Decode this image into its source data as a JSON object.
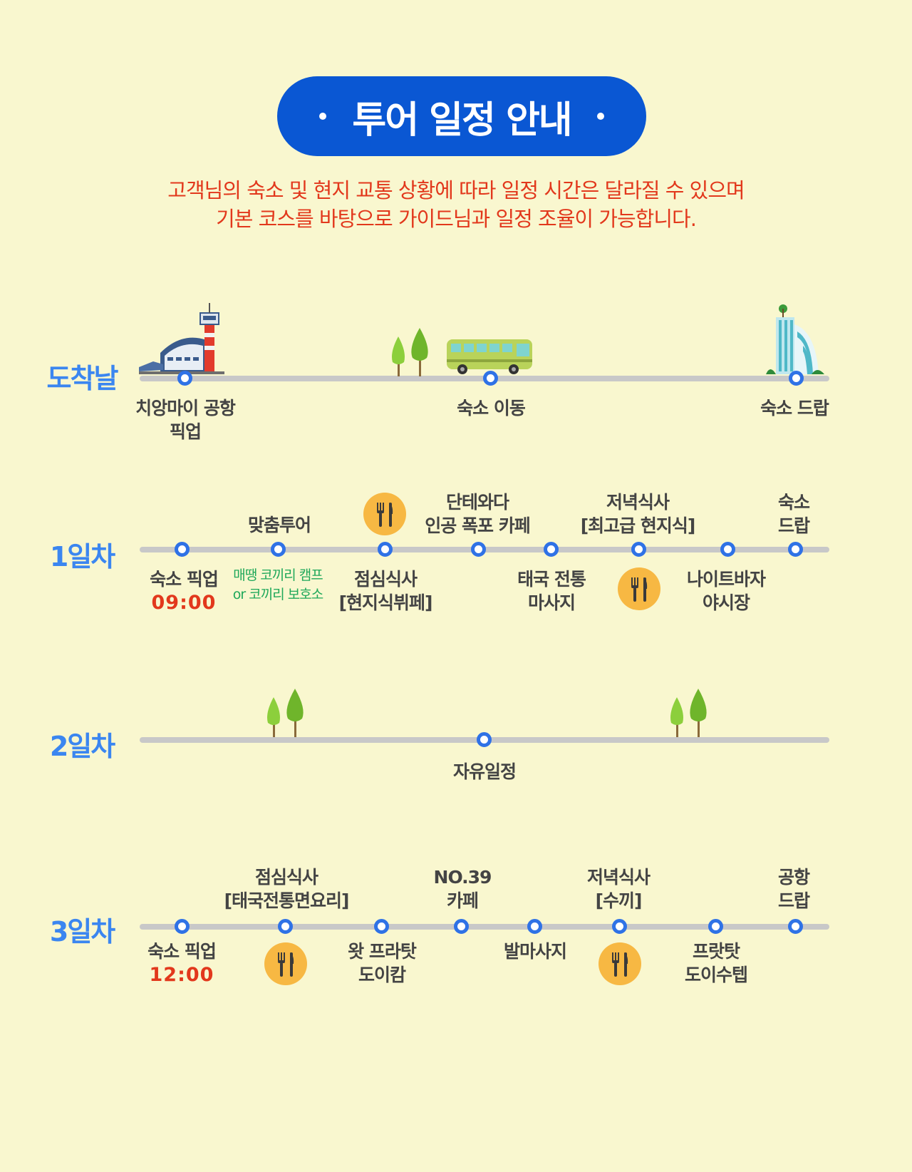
{
  "header": {
    "title": "투어 일정 안내"
  },
  "notice": {
    "line1": "고객님의 숙소 및 현지 교통 상황에 따라 일정 시간은 달라질 수 있으며",
    "line2": "기본 코스를 바탕으로 가이드님과 일정 조율이 가능합니다."
  },
  "days": {
    "arrival": {
      "label": "도착날",
      "stops": {
        "airport": {
          "line1": "치앙마이 공항",
          "line2": "픽업"
        },
        "transfer": "숙소 이동",
        "dropoff": "숙소 드랍"
      }
    },
    "day1": {
      "label": "1일차",
      "pickup": "숙소 픽업",
      "time": "09:00",
      "custom_tour": "맞춤투어",
      "custom_note": {
        "line1": "매땡 코끼리 캠프",
        "line2": "or 코끼리 보호소"
      },
      "lunch": {
        "line1": "점심식사",
        "line2": "[현지식뷔페]"
      },
      "cafe": {
        "line1": "단테와다",
        "line2": "인공 폭포 카페"
      },
      "massage": {
        "line1": "태국 전통",
        "line2": "마사지"
      },
      "dinner": {
        "line1": "저녁식사",
        "line2": "[최고급 현지식]"
      },
      "night_bazaar": {
        "line1": "나이트바자",
        "line2": "야시장"
      },
      "dropoff": {
        "line1": "숙소",
        "line2": "드랍"
      }
    },
    "day2": {
      "label": "2일차",
      "free": "자유일정"
    },
    "day3": {
      "label": "3일차",
      "pickup": "숙소 픽업",
      "time": "12:00",
      "lunch": {
        "line1": "점심식사",
        "line2": "[태국전통면요리]"
      },
      "wat": {
        "line1": "왓 프라탓",
        "line2": "도이캄"
      },
      "cafe": {
        "line1": "NO.39",
        "line2": "카페"
      },
      "foot_massage": "발마사지",
      "dinner": {
        "line1": "저녁식사",
        "line2": "[수끼]"
      },
      "prathat": {
        "line1": "프랏탓",
        "line2": "도이수텝"
      },
      "airport_drop": {
        "line1": "공항",
        "line2": "드랍"
      }
    }
  },
  "colors": {
    "background": "#f9f7cf",
    "title_pill": "#0a57d3",
    "notice_text": "#e2381c",
    "day_label": "#3b86f0",
    "node": "#2f72e6",
    "food_icon": "#f7b843",
    "note_text": "#1fa85a"
  },
  "icons": [
    "airport-tower-icon",
    "tree-icon",
    "bus-icon",
    "hotel-building-icon",
    "fork-knife-icon"
  ]
}
